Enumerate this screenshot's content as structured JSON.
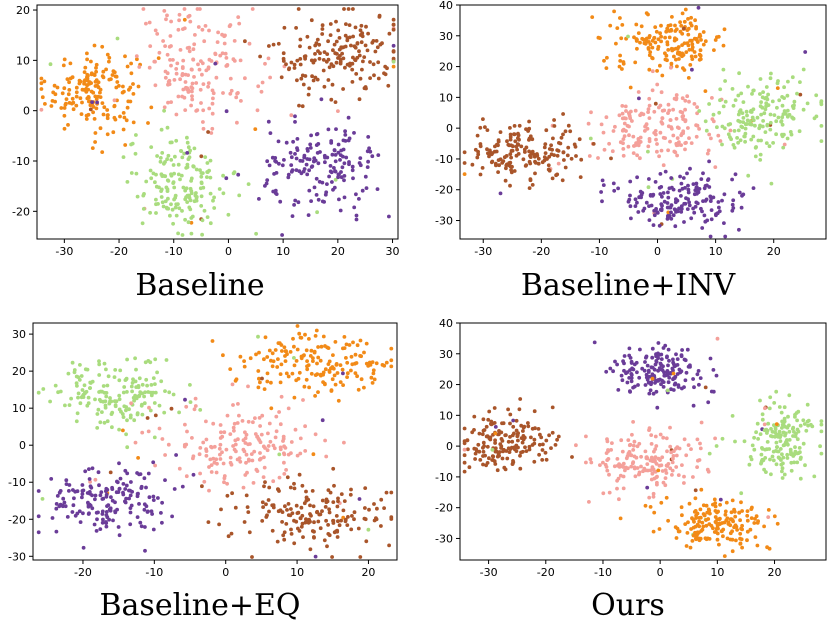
{
  "figure": {
    "description_less": true,
    "colors": {
      "orange": "#F28A17",
      "pink": "#F4A09A",
      "brown": "#A9552A",
      "purple": "#6A3C98",
      "green": "#A9DC7E"
    }
  },
  "chart_data": [
    {
      "type": "scatter",
      "title": "Baseline",
      "xlim": [
        -35,
        31
      ],
      "ylim": [
        -25.5,
        21
      ],
      "xticks": [
        -30,
        -20,
        -10,
        0,
        10,
        20,
        30
      ],
      "yticks": [
        -20,
        -10,
        0,
        10,
        20
      ],
      "clusters": [
        {
          "color": "orange",
          "cx": -25,
          "cy": 4,
          "sx": 4.2,
          "sy": 4,
          "n": 170
        },
        {
          "color": "pink",
          "cx": -5,
          "cy": 9,
          "sx": 5.5,
          "sy": 5.5,
          "n": 170
        },
        {
          "color": "brown",
          "cx": 20,
          "cy": 11,
          "sx": 6,
          "sy": 4.5,
          "n": 170
        },
        {
          "color": "green",
          "cx": -9,
          "cy": -14,
          "sx": 4.8,
          "sy": 5,
          "n": 170
        },
        {
          "color": "purple",
          "cx": 17,
          "cy": -12,
          "sx": 5.5,
          "sy": 4.5,
          "n": 170
        }
      ]
    },
    {
      "type": "scatter",
      "title": "Baseline+INV",
      "xlim": [
        -34,
        29
      ],
      "ylim": [
        -36,
        40
      ],
      "xticks": [
        -30,
        -20,
        -10,
        0,
        10,
        20
      ],
      "yticks": [
        -30,
        -20,
        -10,
        0,
        10,
        20,
        30,
        40
      ],
      "clusters": [
        {
          "color": "orange",
          "cx": 2,
          "cy": 28,
          "sx": 5,
          "sy": 4.5,
          "n": 170
        },
        {
          "color": "pink",
          "cx": -1,
          "cy": 0,
          "sx": 5.5,
          "sy": 6,
          "n": 170
        },
        {
          "color": "brown",
          "cx": -23,
          "cy": -8,
          "sx": 5,
          "sy": 5,
          "n": 170
        },
        {
          "color": "green",
          "cx": 18,
          "cy": 4,
          "sx": 4.5,
          "sy": 6,
          "n": 170
        },
        {
          "color": "purple",
          "cx": 4,
          "cy": -23,
          "sx": 5.5,
          "sy": 4.5,
          "n": 170
        }
      ]
    },
    {
      "type": "scatter",
      "title": "Baseline+EQ",
      "xlim": [
        -27,
        24
      ],
      "ylim": [
        -31,
        33
      ],
      "xticks": [
        -20,
        -10,
        0,
        10,
        20
      ],
      "yticks": [
        -30,
        -20,
        -10,
        0,
        10,
        20,
        30
      ],
      "clusters": [
        {
          "color": "green",
          "cx": -15,
          "cy": 14,
          "sx": 4.5,
          "sy": 4.5,
          "n": 170
        },
        {
          "color": "orange",
          "cx": 13,
          "cy": 22,
          "sx": 5.5,
          "sy": 4.5,
          "n": 170
        },
        {
          "color": "pink",
          "cx": 2,
          "cy": 0,
          "sx": 5,
          "sy": 5,
          "n": 170
        },
        {
          "color": "purple",
          "cx": -17,
          "cy": -15,
          "sx": 4.5,
          "sy": 4.5,
          "n": 170
        },
        {
          "color": "brown",
          "cx": 12,
          "cy": -19,
          "sx": 5.5,
          "sy": 4.5,
          "n": 170
        }
      ]
    },
    {
      "type": "scatter",
      "title": "Ours",
      "xlim": [
        -35,
        29
      ],
      "ylim": [
        -37,
        40
      ],
      "xticks": [
        -30,
        -20,
        -10,
        0,
        10,
        20
      ],
      "yticks": [
        -30,
        -20,
        -10,
        0,
        10,
        20,
        30,
        40
      ],
      "clusters": [
        {
          "color": "purple",
          "cx": 0,
          "cy": 24,
          "sx": 4,
          "sy": 4.5,
          "n": 170
        },
        {
          "color": "brown",
          "cx": -27,
          "cy": 2,
          "sx": 4.5,
          "sy": 5,
          "n": 170
        },
        {
          "color": "pink",
          "cx": -3,
          "cy": -5,
          "sx": 5,
          "sy": 5.5,
          "n": 170
        },
        {
          "color": "green",
          "cx": 21,
          "cy": 2,
          "sx": 3.5,
          "sy": 5.5,
          "n": 170
        },
        {
          "color": "orange",
          "cx": 9,
          "cy": -25,
          "sx": 5,
          "sy": 4,
          "n": 170
        }
      ]
    }
  ]
}
